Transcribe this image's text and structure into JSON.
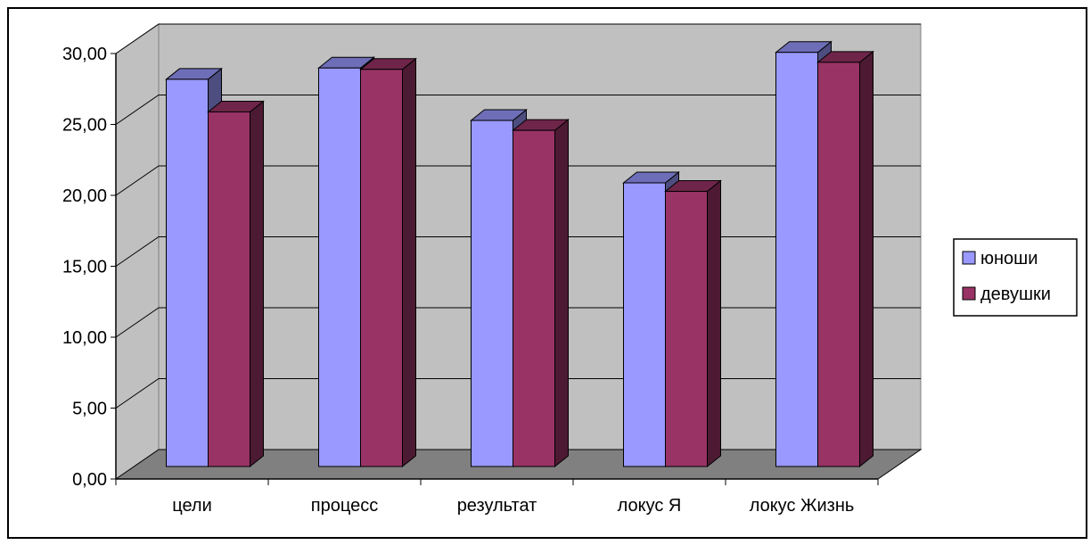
{
  "chart_data": {
    "type": "bar",
    "title": "",
    "xlabel": "",
    "ylabel": "",
    "categories": [
      "цели",
      "процесс",
      "результат",
      "локус Я",
      "локус Жизнь"
    ],
    "series": [
      {
        "name": "юноши",
        "values": [
          27.3,
          28.1,
          24.4,
          20.0,
          29.2
        ],
        "color": "#9999ff"
      },
      {
        "name": "девушки",
        "values": [
          25.0,
          28.0,
          23.7,
          19.4,
          28.5
        ],
        "color": "#993366"
      }
    ],
    "ylim": [
      0,
      30
    ],
    "yticks": [
      "0,00",
      "5,00",
      "10,00",
      "15,00",
      "20,00",
      "25,00",
      "30,00"
    ],
    "grid": true,
    "legend_position": "right",
    "style": "3d-clustered",
    "wall_color": "#c0c0c0",
    "floor_color": "#808080"
  }
}
